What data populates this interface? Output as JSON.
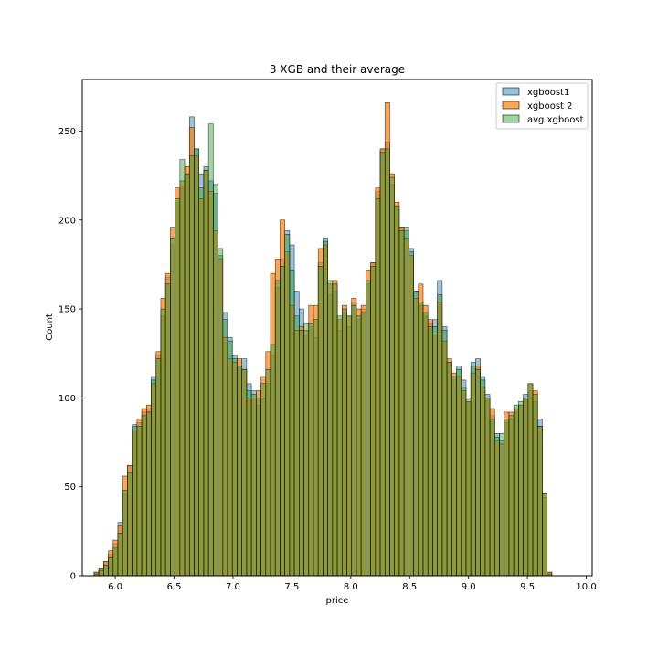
{
  "chart_data": {
    "type": "histogram",
    "title": "3 XGB and their average",
    "xlabel": "price",
    "ylabel": "Count",
    "xlim": [
      5.72,
      10.05
    ],
    "ylim": [
      0,
      279
    ],
    "xticks": [
      6.0,
      6.5,
      7.0,
      7.5,
      8.0,
      8.5,
      9.0,
      9.5,
      10.0
    ],
    "xtick_labels": [
      "6.0",
      "6.5",
      "7.0",
      "7.5",
      "8.0",
      "8.5",
      "9.0",
      "9.5",
      "10.0"
    ],
    "yticks": [
      0,
      50,
      100,
      150,
      200,
      250
    ],
    "ytick_labels": [
      "0",
      "50",
      "100",
      "150",
      "200",
      "250"
    ],
    "bin_start": 5.82,
    "bin_width": 0.0405,
    "grid": false,
    "legend_position": "top-right",
    "series": [
      {
        "name": "xgboost1",
        "color": "#1f77b4",
        "values": [
          2,
          4,
          8,
          12,
          18,
          30,
          46,
          62,
          85,
          86,
          92,
          94,
          112,
          124,
          146,
          168,
          186,
          210,
          218,
          226,
          258,
          240,
          226,
          230,
          222,
          215,
          180,
          148,
          134,
          124,
          118,
          122,
          108,
          104,
          96,
          100,
          108,
          124,
          162,
          178,
          194,
          186,
          160,
          150,
          136,
          140,
          134,
          176,
          190,
          158,
          160,
          138,
          148,
          140,
          154,
          144,
          150,
          164,
          176,
          216,
          240,
          244,
          220,
          206,
          196,
          194,
          184,
          160,
          152,
          146,
          142,
          144,
          166,
          140,
          120,
          110,
          118,
          110,
          98,
          120,
          122,
          112,
          102,
          90,
          80,
          76,
          86,
          88,
          92,
          96,
          102,
          104,
          98,
          88,
          44,
          2
        ]
      },
      {
        "name": "xgboost 2",
        "color": "#ff7f0e",
        "values": [
          2,
          4,
          8,
          14,
          20,
          28,
          56,
          62,
          82,
          88,
          94,
          96,
          108,
          126,
          156,
          170,
          196,
          218,
          222,
          230,
          252,
          236,
          212,
          228,
          216,
          194,
          178,
          134,
          122,
          120,
          122,
          116,
          100,
          100,
          104,
          112,
          126,
          170,
          178,
          200,
          182,
          152,
          138,
          140,
          138,
          152,
          152,
          184,
          186,
          164,
          166,
          144,
          152,
          146,
          156,
          150,
          152,
          172,
          176,
          218,
          240,
          266,
          226,
          210,
          196,
          190,
          180,
          156,
          164,
          152,
          144,
          136,
          154,
          132,
          122,
          114,
          112,
          104,
          98,
          114,
          118,
          106,
          100,
          94,
          76,
          74,
          92,
          92,
          94,
          96,
          100,
          108,
          104,
          84,
          46,
          2
        ]
      },
      {
        "name": "avg xgboost",
        "color": "#2ca02c",
        "values": [
          1,
          3,
          6,
          10,
          16,
          24,
          48,
          58,
          84,
          84,
          90,
          92,
          110,
          122,
          150,
          164,
          190,
          212,
          234,
          226,
          236,
          240,
          218,
          228,
          254,
          220,
          184,
          144,
          132,
          122,
          118,
          116,
          104,
          102,
          100,
          108,
          116,
          130,
          166,
          174,
          192,
          172,
          146,
          138,
          142,
          142,
          144,
          174,
          188,
          166,
          164,
          146,
          150,
          146,
          152,
          146,
          148,
          166,
          174,
          212,
          238,
          240,
          224,
          208,
          194,
          196,
          182,
          160,
          154,
          148,
          140,
          140,
          158,
          138,
          120,
          112,
          116,
          106,
          100,
          118,
          116,
          110,
          100,
          88,
          78,
          80,
          88,
          90,
          96,
          98,
          100,
          108,
          102,
          84,
          46,
          1
        ]
      }
    ]
  }
}
